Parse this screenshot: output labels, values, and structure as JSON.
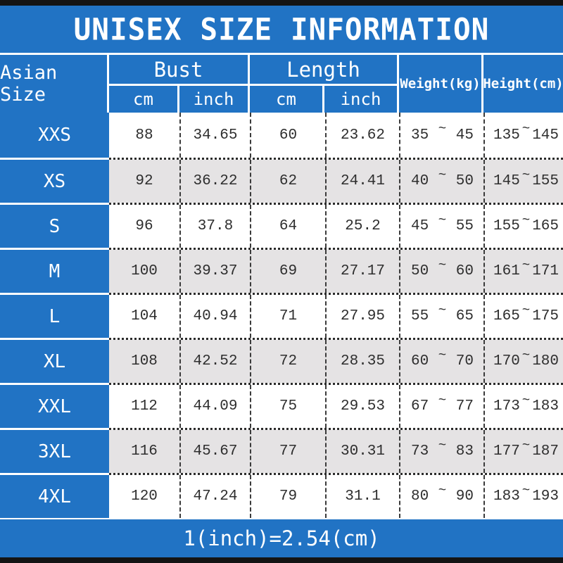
{
  "title": "UNISEX SIZE INFORMATION",
  "header": {
    "size_col": "Asian Size",
    "bust": {
      "label": "Bust",
      "subs": [
        "cm",
        "inch"
      ]
    },
    "length": {
      "label": "Length",
      "subs": [
        "cm",
        "inch"
      ]
    },
    "weight": "Weight(kg)",
    "height": "Height(cm)"
  },
  "tilde": "~",
  "rows": [
    {
      "size": "XXS",
      "bust_cm": "88",
      "bust_inch": "34.65",
      "length_cm": "60",
      "length_inch": "23.62",
      "weight_min": "35",
      "weight_max": "45",
      "height_min": "135",
      "height_max": "145"
    },
    {
      "size": "XS",
      "bust_cm": "92",
      "bust_inch": "36.22",
      "length_cm": "62",
      "length_inch": "24.41",
      "weight_min": "40",
      "weight_max": "50",
      "height_min": "145",
      "height_max": "155"
    },
    {
      "size": "S",
      "bust_cm": "96",
      "bust_inch": "37.8",
      "length_cm": "64",
      "length_inch": "25.2",
      "weight_min": "45",
      "weight_max": "55",
      "height_min": "155",
      "height_max": "165"
    },
    {
      "size": "M",
      "bust_cm": "100",
      "bust_inch": "39.37",
      "length_cm": "69",
      "length_inch": "27.17",
      "weight_min": "50",
      "weight_max": "60",
      "height_min": "161",
      "height_max": "171"
    },
    {
      "size": "L",
      "bust_cm": "104",
      "bust_inch": "40.94",
      "length_cm": "71",
      "length_inch": "27.95",
      "weight_min": "55",
      "weight_max": "65",
      "height_min": "165",
      "height_max": "175"
    },
    {
      "size": "XL",
      "bust_cm": "108",
      "bust_inch": "42.52",
      "length_cm": "72",
      "length_inch": "28.35",
      "weight_min": "60",
      "weight_max": "70",
      "height_min": "170",
      "height_max": "180"
    },
    {
      "size": "XXL",
      "bust_cm": "112",
      "bust_inch": "44.09",
      "length_cm": "75",
      "length_inch": "29.53",
      "weight_min": "67",
      "weight_max": "77",
      "height_min": "173",
      "height_max": "183"
    },
    {
      "size": "3XL",
      "bust_cm": "116",
      "bust_inch": "45.67",
      "length_cm": "77",
      "length_inch": "30.31",
      "weight_min": "73",
      "weight_max": "83",
      "height_min": "177",
      "height_max": "187"
    },
    {
      "size": "4XL",
      "bust_cm": "120",
      "bust_inch": "47.24",
      "length_cm": "79",
      "length_inch": "31.1",
      "weight_min": "80",
      "weight_max": "90",
      "height_min": "183",
      "height_max": "193"
    }
  ],
  "footer": "1(inch)=2.54(cm)",
  "colors": {
    "accent_blue": "#2173c4",
    "alt_row_gray": "#e5e3e4",
    "frame_black": "#141414"
  }
}
